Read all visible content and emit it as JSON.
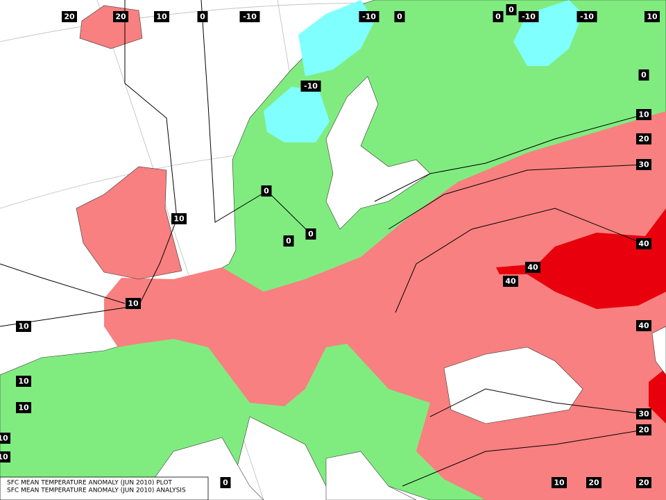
{
  "map": {
    "contour_labels": [
      "20",
      "20",
      "10",
      "0",
      "-10",
      "-10",
      "0",
      "0",
      "0",
      "-10",
      "-10",
      "10",
      "-10",
      "0",
      "10",
      "20",
      "30",
      "0",
      "10",
      "0",
      "0",
      "40",
      "40",
      "40",
      "10",
      "10",
      "40",
      "10",
      "10",
      "10",
      "10",
      "30",
      "20",
      "0",
      "10",
      "20",
      "20"
    ],
    "legend": {
      "line1": "SFC MEAN TEMPERATURE ANOMALY (JUN 2010) PLOT",
      "line2": "SFC MEAN TEMPERATURE ANOMALY (JUN 2010) ANALYSIS"
    }
  }
}
